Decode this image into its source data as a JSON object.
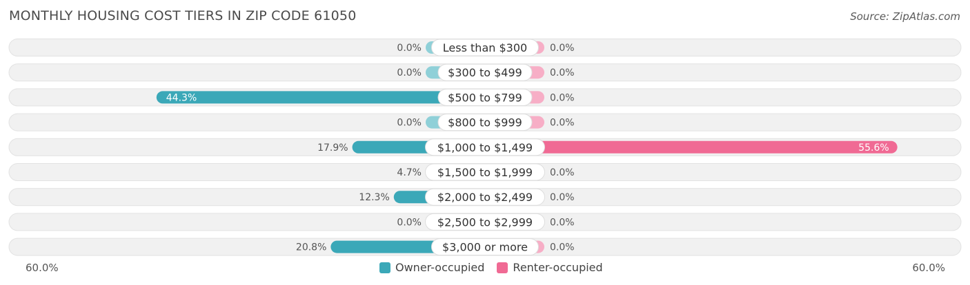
{
  "header": {
    "title": "MONTHLY HOUSING COST TIERS IN ZIP CODE 61050",
    "source": "Source: ZipAtlas.com"
  },
  "colors": {
    "owner": "#3ba8b8",
    "owner_light": "#8fd0d8",
    "renter": "#f06a94",
    "renter_light": "#f7aec6",
    "track": "#f1f1f1"
  },
  "chart_data": {
    "type": "bar",
    "orientation": "horizontal-diverging",
    "title": "MONTHLY HOUSING COST TIERS IN ZIP CODE 61050",
    "categories": [
      "Less than $300",
      "$300 to $499",
      "$500 to $799",
      "$800 to $999",
      "$1,000 to $1,499",
      "$1,500 to $1,999",
      "$2,000 to $2,499",
      "$2,500 to $2,999",
      "$3,000 or more"
    ],
    "series": [
      {
        "name": "Owner-occupied",
        "values": [
          0.0,
          0.0,
          44.3,
          0.0,
          17.9,
          4.7,
          12.3,
          0.0,
          20.8
        ]
      },
      {
        "name": "Renter-occupied",
        "values": [
          0.0,
          0.0,
          0.0,
          0.0,
          55.6,
          0.0,
          0.0,
          0.0,
          0.0
        ]
      }
    ],
    "labels": {
      "owner": [
        "0.0%",
        "0.0%",
        "44.3%",
        "0.0%",
        "17.9%",
        "4.7%",
        "12.3%",
        "0.0%",
        "20.8%"
      ],
      "renter": [
        "0.0%",
        "0.0%",
        "0.0%",
        "0.0%",
        "55.6%",
        "0.0%",
        "0.0%",
        "0.0%",
        "0.0%"
      ]
    },
    "xlim": [
      -60,
      60
    ],
    "axis_min_label": "60.0%",
    "axis_max_label": "60.0%",
    "legend_position": "bottom-center"
  }
}
